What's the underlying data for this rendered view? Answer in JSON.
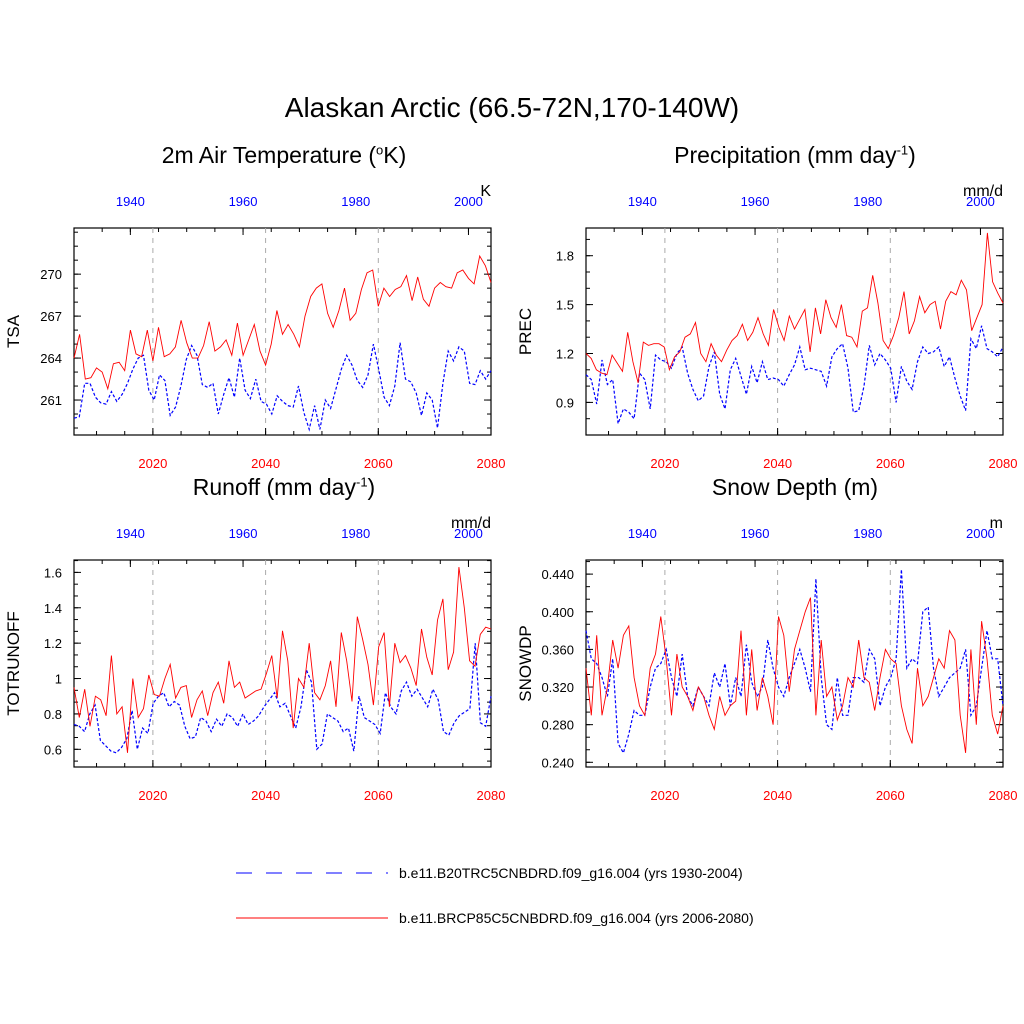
{
  "main_title": "Alaskan Arctic (66.5-72N,170-140W)",
  "legend": [
    {
      "label": "b.e11.B20TRC5CNBDRD.f09_g16.004 (yrs 1930-2004)",
      "color": "#0000ff",
      "style": "dashed"
    },
    {
      "label": "b.e11.BRCP85C5CNBDRD.f09_g16.004 (yrs 2006-2080)",
      "color": "#ff0000",
      "style": "solid"
    }
  ],
  "colors": {
    "historical": "#0000ff",
    "future": "#ff0000",
    "grid": "#aaaaaa"
  },
  "chart_data": [
    {
      "type": "line",
      "title": "2m Air Temperature (oK)",
      "title_parts": [
        "2m Air Temperature (",
        "o",
        "K)"
      ],
      "ylabel": "TSA",
      "units": "K",
      "ylim": [
        258.5,
        273.3
      ],
      "yticks": [
        261,
        264,
        267,
        270
      ],
      "xlim_future": [
        2006,
        2080
      ],
      "xticks_future": [
        2020,
        2040,
        2060,
        2080
      ],
      "xlim_hist": [
        1930,
        2004
      ],
      "xticks_hist": [
        1940,
        1960,
        1980,
        2000
      ],
      "gridlines_x": [
        2020,
        2040,
        2060
      ],
      "series": [
        {
          "name": "historical",
          "years": "1930-2004",
          "values": [
            259.7,
            259.8,
            262.2,
            262.2,
            261.2,
            260.8,
            260.7,
            261.6,
            260.9,
            261.4,
            262.2,
            263.2,
            264.0,
            264.2,
            261.7,
            261.0,
            262.8,
            262.4,
            259.9,
            260.5,
            262.0,
            263.9,
            264.9,
            264.2,
            262.1,
            261.9,
            262.2,
            260.0,
            261.4,
            262.6,
            261.2,
            264.0,
            261.7,
            261.1,
            262.5,
            260.9,
            260.7,
            260.0,
            261.3,
            260.9,
            260.6,
            260.5,
            262.0,
            260.1,
            258.9,
            260.6,
            258.9,
            261.0,
            260.4,
            261.8,
            263.2,
            264.2,
            263.5,
            262.4,
            261.9,
            262.8,
            265.0,
            263.2,
            261.2,
            260.6,
            262.0,
            265.1,
            262.5,
            262.3,
            261.5,
            259.9,
            261.5,
            261.0,
            259.0,
            262.2,
            264.5,
            263.8,
            264.8,
            264.5,
            262.2,
            262.1,
            263.1,
            262.5,
            263.1
          ]
        },
        {
          "name": "future",
          "years": "2006-2080",
          "values": [
            264.0,
            265.7,
            262.5,
            262.6,
            263.3,
            263.0,
            261.8,
            263.6,
            263.7,
            263.1,
            266.0,
            264.3,
            264.1,
            266.0,
            263.8,
            266.2,
            264.1,
            264.3,
            264.8,
            266.7,
            265.1,
            264.0,
            264.0,
            264.9,
            266.6,
            264.5,
            264.8,
            265.3,
            264.2,
            266.5,
            264.2,
            265.3,
            266.4,
            264.5,
            263.5,
            265.0,
            267.4,
            265.7,
            266.4,
            265.7,
            264.8,
            267.0,
            268.4,
            269.0,
            269.3,
            267.2,
            266.2,
            267.4,
            269.0,
            266.7,
            267.2,
            268.9,
            270.1,
            270.3,
            267.7,
            269.0,
            268.4,
            268.9,
            269.1,
            269.9,
            268.1,
            269.8,
            268.2,
            267.7,
            269.0,
            269.4,
            269.1,
            269.0,
            270.1,
            270.3,
            269.7,
            269.3,
            271.3,
            270.6,
            269.4
          ]
        }
      ]
    },
    {
      "type": "line",
      "title": "Precipitation (mm day-1)",
      "title_parts": [
        "Precipitation (mm day",
        "-1",
        ")"
      ],
      "ylabel": "PREC",
      "units": "mm/d",
      "ylim": [
        0.7,
        1.97
      ],
      "yticks": [
        0.9,
        1.2,
        1.5,
        1.8
      ],
      "xlim_future": [
        2006,
        2080
      ],
      "xticks_future": [
        2020,
        2040,
        2060,
        2080
      ],
      "xlim_hist": [
        1930,
        2004
      ],
      "xticks_hist": [
        1940,
        1960,
        1980,
        2000
      ],
      "gridlines_x": [
        2020,
        2040,
        2060
      ],
      "series": [
        {
          "name": "historical",
          "years": "1930-2004",
          "values": [
            1.07,
            1.04,
            0.89,
            1.16,
            1.01,
            1.04,
            0.77,
            0.86,
            0.84,
            0.8,
            1.08,
            1.04,
            0.86,
            1.19,
            1.16,
            1.15,
            1.11,
            1.2,
            1.24,
            1.08,
            0.98,
            0.91,
            0.94,
            1.12,
            1.21,
            0.95,
            0.86,
            1.1,
            1.17,
            1.06,
            0.95,
            1.12,
            1.02,
            1.15,
            1.04,
            1.05,
            1.04,
            1.0,
            1.07,
            1.13,
            1.24,
            1.1,
            1.11,
            1.1,
            1.09,
            1.0,
            1.18,
            1.23,
            1.26,
            1.11,
            0.84,
            0.85,
            1.0,
            1.25,
            1.13,
            1.2,
            1.16,
            1.11,
            0.9,
            1.12,
            1.03,
            0.98,
            1.15,
            1.24,
            1.2,
            1.21,
            1.24,
            1.12,
            1.18,
            1.05,
            0.94,
            0.85,
            1.29,
            1.23,
            1.37,
            1.23,
            1.21,
            1.18,
            1.24
          ]
        },
        {
          "name": "future",
          "years": "2006-2080",
          "values": [
            1.2,
            1.17,
            1.1,
            1.08,
            1.07,
            1.19,
            1.14,
            1.09,
            1.33,
            1.15,
            1.02,
            1.27,
            1.25,
            1.26,
            1.26,
            1.24,
            1.1,
            1.18,
            1.21,
            1.3,
            1.32,
            1.39,
            1.2,
            1.15,
            1.26,
            1.19,
            1.15,
            1.22,
            1.28,
            1.31,
            1.38,
            1.28,
            1.33,
            1.42,
            1.32,
            1.25,
            1.47,
            1.36,
            1.28,
            1.43,
            1.35,
            1.41,
            1.47,
            1.21,
            1.48,
            1.32,
            1.53,
            1.42,
            1.36,
            1.5,
            1.31,
            1.3,
            1.24,
            1.46,
            1.48,
            1.68,
            1.51,
            1.28,
            1.23,
            1.31,
            1.42,
            1.58,
            1.32,
            1.4,
            1.55,
            1.45,
            1.5,
            1.52,
            1.35,
            1.52,
            1.58,
            1.56,
            1.65,
            1.59,
            1.34,
            1.42,
            1.5,
            1.94,
            1.64,
            1.57,
            1.51
          ]
        }
      ]
    },
    {
      "type": "line",
      "title": "Runoff (mm day-1)",
      "title_parts": [
        "Runoff (mm day",
        "-1",
        ")"
      ],
      "ylabel": "TOTRUNOFF",
      "units": "mm/d",
      "ylim": [
        0.5,
        1.67
      ],
      "yticks": [
        0.6,
        0.8,
        1.0,
        1.2,
        1.4,
        1.6
      ],
      "xlim_future": [
        2006,
        2080
      ],
      "xticks_future": [
        2020,
        2040,
        2060,
        2080
      ],
      "xlim_hist": [
        1930,
        2004
      ],
      "xticks_hist": [
        1940,
        1960,
        1980,
        2000
      ],
      "gridlines_x": [
        2020,
        2040,
        2060
      ],
      "series": [
        {
          "name": "historical",
          "years": "1930-2004",
          "values": [
            0.74,
            0.73,
            0.7,
            0.8,
            0.85,
            0.65,
            0.62,
            0.59,
            0.58,
            0.61,
            0.66,
            0.82,
            0.6,
            0.72,
            0.69,
            0.86,
            0.9,
            0.92,
            0.84,
            0.87,
            0.85,
            0.73,
            0.66,
            0.67,
            0.78,
            0.76,
            0.7,
            0.77,
            0.73,
            0.8,
            0.78,
            0.73,
            0.8,
            0.74,
            0.76,
            0.79,
            0.84,
            0.88,
            0.92,
            0.84,
            0.86,
            0.79,
            0.72,
            0.84,
            1.05,
            0.98,
            0.6,
            0.63,
            0.8,
            0.78,
            0.76,
            0.7,
            0.72,
            0.59,
            0.9,
            0.78,
            0.76,
            0.74,
            0.69,
            0.92,
            0.84,
            0.8,
            0.93,
            0.98,
            0.9,
            0.94,
            0.89,
            0.84,
            0.94,
            0.88,
            0.7,
            0.68,
            0.75,
            0.79,
            0.81,
            0.83,
            1.2,
            0.75,
            0.73,
            0.9
          ]
        },
        {
          "name": "future",
          "years": "2006-2080",
          "values": [
            0.95,
            0.78,
            0.94,
            0.73,
            0.9,
            0.88,
            0.79,
            1.13,
            0.8,
            0.84,
            0.58,
            1.0,
            0.78,
            0.83,
            1.02,
            0.91,
            0.9,
            1.0,
            1.08,
            0.89,
            0.95,
            0.96,
            0.78,
            0.88,
            0.93,
            0.79,
            0.92,
            0.98,
            0.86,
            1.1,
            0.95,
            0.98,
            0.89,
            0.91,
            0.93,
            0.94,
            1.03,
            1.13,
            0.89,
            1.27,
            1.1,
            0.72,
            1.0,
            0.95,
            1.2,
            0.92,
            0.88,
            0.96,
            1.1,
            0.84,
            1.26,
            1.1,
            0.87,
            1.35,
            1.22,
            1.08,
            0.85,
            1.18,
            1.26,
            0.84,
            1.2,
            1.09,
            1.13,
            1.06,
            0.96,
            1.28,
            1.12,
            1.02,
            1.33,
            1.45,
            1.05,
            1.15,
            1.63,
            1.4,
            1.1,
            1.07,
            1.25,
            1.29,
            1.28
          ]
        }
      ]
    },
    {
      "type": "line",
      "title": "Snow Depth (m)",
      "title_parts": [
        "Snow Depth (m)"
      ],
      "ylabel": "SNOWDP",
      "units": "m",
      "ylim": [
        0.235,
        0.455
      ],
      "yticks": [
        0.24,
        0.28,
        0.32,
        0.36,
        0.4,
        0.44
      ],
      "ytick_labels": [
        "0.240",
        "0.280",
        "0.320",
        "0.360",
        "0.400",
        "0.440"
      ],
      "xlim_future": [
        2006,
        2080
      ],
      "xticks_future": [
        2020,
        2040,
        2060,
        2080
      ],
      "xlim_hist": [
        1930,
        2004
      ],
      "xticks_hist": [
        1940,
        1960,
        1980,
        2000
      ],
      "gridlines_x": [
        2020,
        2040,
        2060
      ],
      "series": [
        {
          "name": "historical",
          "years": "1930-2004",
          "values": [
            0.38,
            0.35,
            0.345,
            0.33,
            0.31,
            0.35,
            0.26,
            0.25,
            0.27,
            0.295,
            0.29,
            0.29,
            0.32,
            0.34,
            0.345,
            0.36,
            0.33,
            0.31,
            0.355,
            0.31,
            0.3,
            0.32,
            0.31,
            0.3,
            0.335,
            0.32,
            0.345,
            0.3,
            0.33,
            0.31,
            0.365,
            0.325,
            0.31,
            0.32,
            0.37,
            0.34,
            0.32,
            0.31,
            0.33,
            0.345,
            0.36,
            0.34,
            0.315,
            0.435,
            0.33,
            0.28,
            0.275,
            0.33,
            0.29,
            0.29,
            0.33,
            0.33,
            0.325,
            0.36,
            0.35,
            0.3,
            0.32,
            0.33,
            0.35,
            0.445,
            0.34,
            0.35,
            0.345,
            0.4,
            0.405,
            0.34,
            0.31,
            0.32,
            0.33,
            0.335,
            0.34,
            0.36,
            0.29,
            0.3,
            0.34,
            0.38,
            0.35,
            0.35,
            0.3
          ]
        },
        {
          "name": "future",
          "years": "2006-2080",
          "values": [
            0.34,
            0.29,
            0.375,
            0.29,
            0.32,
            0.37,
            0.34,
            0.375,
            0.385,
            0.33,
            0.3,
            0.29,
            0.34,
            0.355,
            0.395,
            0.35,
            0.29,
            0.355,
            0.32,
            0.31,
            0.295,
            0.32,
            0.31,
            0.29,
            0.275,
            0.31,
            0.29,
            0.3,
            0.305,
            0.38,
            0.29,
            0.36,
            0.295,
            0.33,
            0.31,
            0.28,
            0.395,
            0.375,
            0.315,
            0.36,
            0.38,
            0.4,
            0.415,
            0.29,
            0.37,
            0.31,
            0.32,
            0.285,
            0.3,
            0.33,
            0.32,
            0.37,
            0.33,
            0.325,
            0.295,
            0.33,
            0.36,
            0.35,
            0.345,
            0.3,
            0.275,
            0.26,
            0.34,
            0.3,
            0.31,
            0.33,
            0.35,
            0.34,
            0.38,
            0.37,
            0.29,
            0.25,
            0.36,
            0.28,
            0.39,
            0.35,
            0.29,
            0.27,
            0.3
          ]
        }
      ]
    }
  ]
}
